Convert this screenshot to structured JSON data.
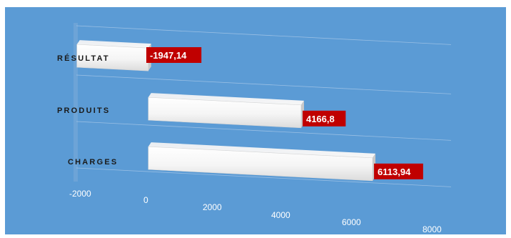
{
  "chart_data": {
    "type": "bar",
    "orientation": "horizontal",
    "categories": [
      "RÉSULTAT",
      "PRODUITS",
      "CHARGES"
    ],
    "values": [
      -1947.14,
      4166.8,
      6113.94
    ],
    "value_labels": [
      "-1947,14",
      "4166,8",
      "6113,94"
    ],
    "x_ticks": [
      "-2000",
      "0",
      "2000",
      "4000",
      "6000",
      "8000"
    ],
    "xlim": [
      -2000,
      8000
    ],
    "grid": true,
    "legend": "none",
    "colors": {
      "background": "#5b9bd5",
      "bar": "#f2f2f2",
      "data_label_bg": "#c00000",
      "data_label_text": "#ffffff"
    }
  }
}
